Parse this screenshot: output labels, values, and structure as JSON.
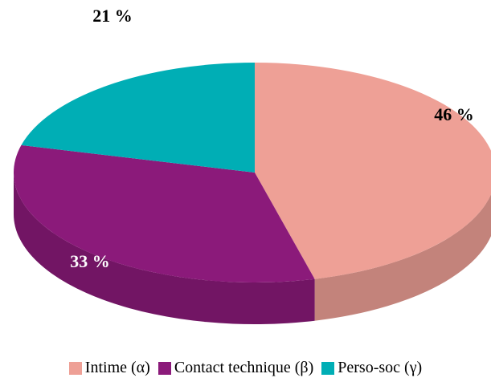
{
  "chart_data": {
    "type": "pie",
    "categories": [
      "Intime (α)",
      "Contact technique (β)",
      "Perso-soc (γ)"
    ],
    "values": [
      46,
      33,
      21
    ],
    "value_labels": [
      "46 %",
      "33 %",
      "21 %"
    ],
    "colors": [
      "#eea096",
      "#8b1a7a",
      "#00aeb5"
    ],
    "legend": "bottom"
  }
}
